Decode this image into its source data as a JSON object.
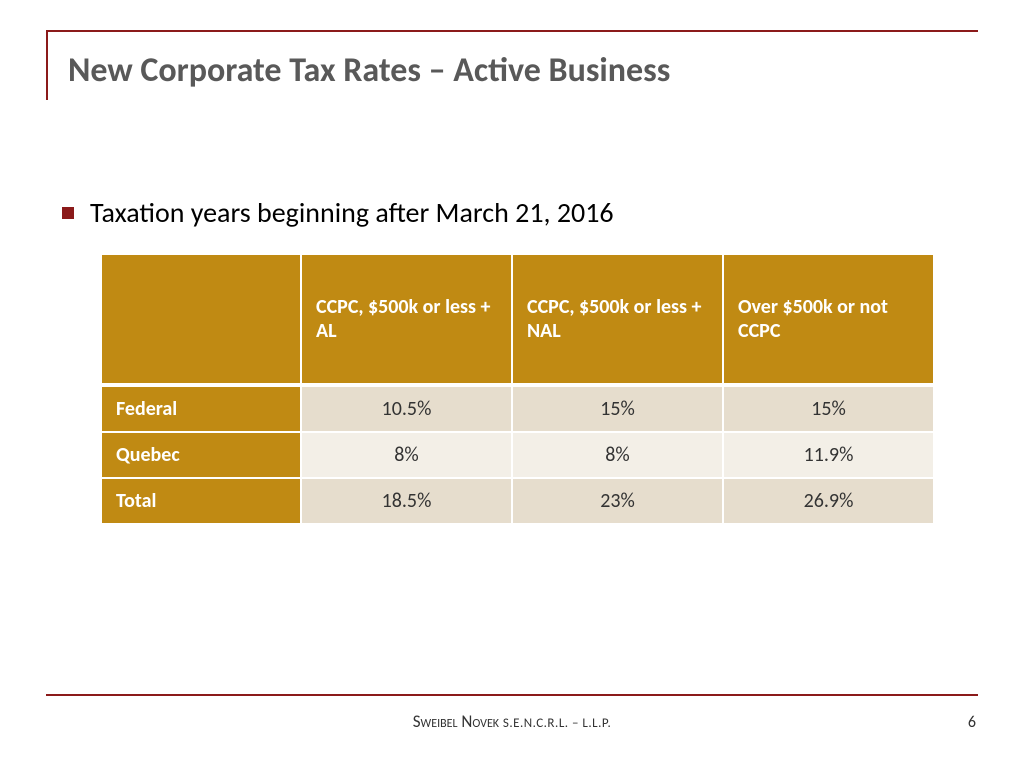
{
  "title": "New Corporate Tax Rates – Active Business",
  "bullet": "Taxation years beginning after March 21, 2016",
  "table": {
    "type": "table",
    "header_bg": "#c08a13",
    "header_fg": "#ffffff",
    "row_label_bg": "#c08a13",
    "row_label_fg": "#ffffff",
    "row_odd_bg": "#e6ddcd",
    "row_even_bg": "#f3efe7",
    "cell_fg": "#333333",
    "border_color": "#ffffff",
    "header_fontsize": 20,
    "cell_fontsize": 20,
    "columns": [
      "",
      "CCPC, $500k or less + AL",
      "CCPC, $500k or less + NAL",
      "Over $500k or not CCPC"
    ],
    "rows": [
      {
        "label": "Federal",
        "values": [
          "10.5%",
          "15%",
          "15%"
        ]
      },
      {
        "label": "Quebec",
        "values": [
          "8%",
          "8%",
          "11.9%"
        ]
      },
      {
        "label": "Total",
        "values": [
          "18.5%",
          "23%",
          "26.9%"
        ]
      }
    ]
  },
  "footer": {
    "firm_primary": "Sweibel Novek",
    "firm_suffix": "S.E.N.C.R.L. – L.L.P."
  },
  "page_number": "6",
  "colors": {
    "accent": "#8b1a1a",
    "title_fg": "#595959",
    "body_fg": "#000000",
    "background": "#ffffff"
  }
}
